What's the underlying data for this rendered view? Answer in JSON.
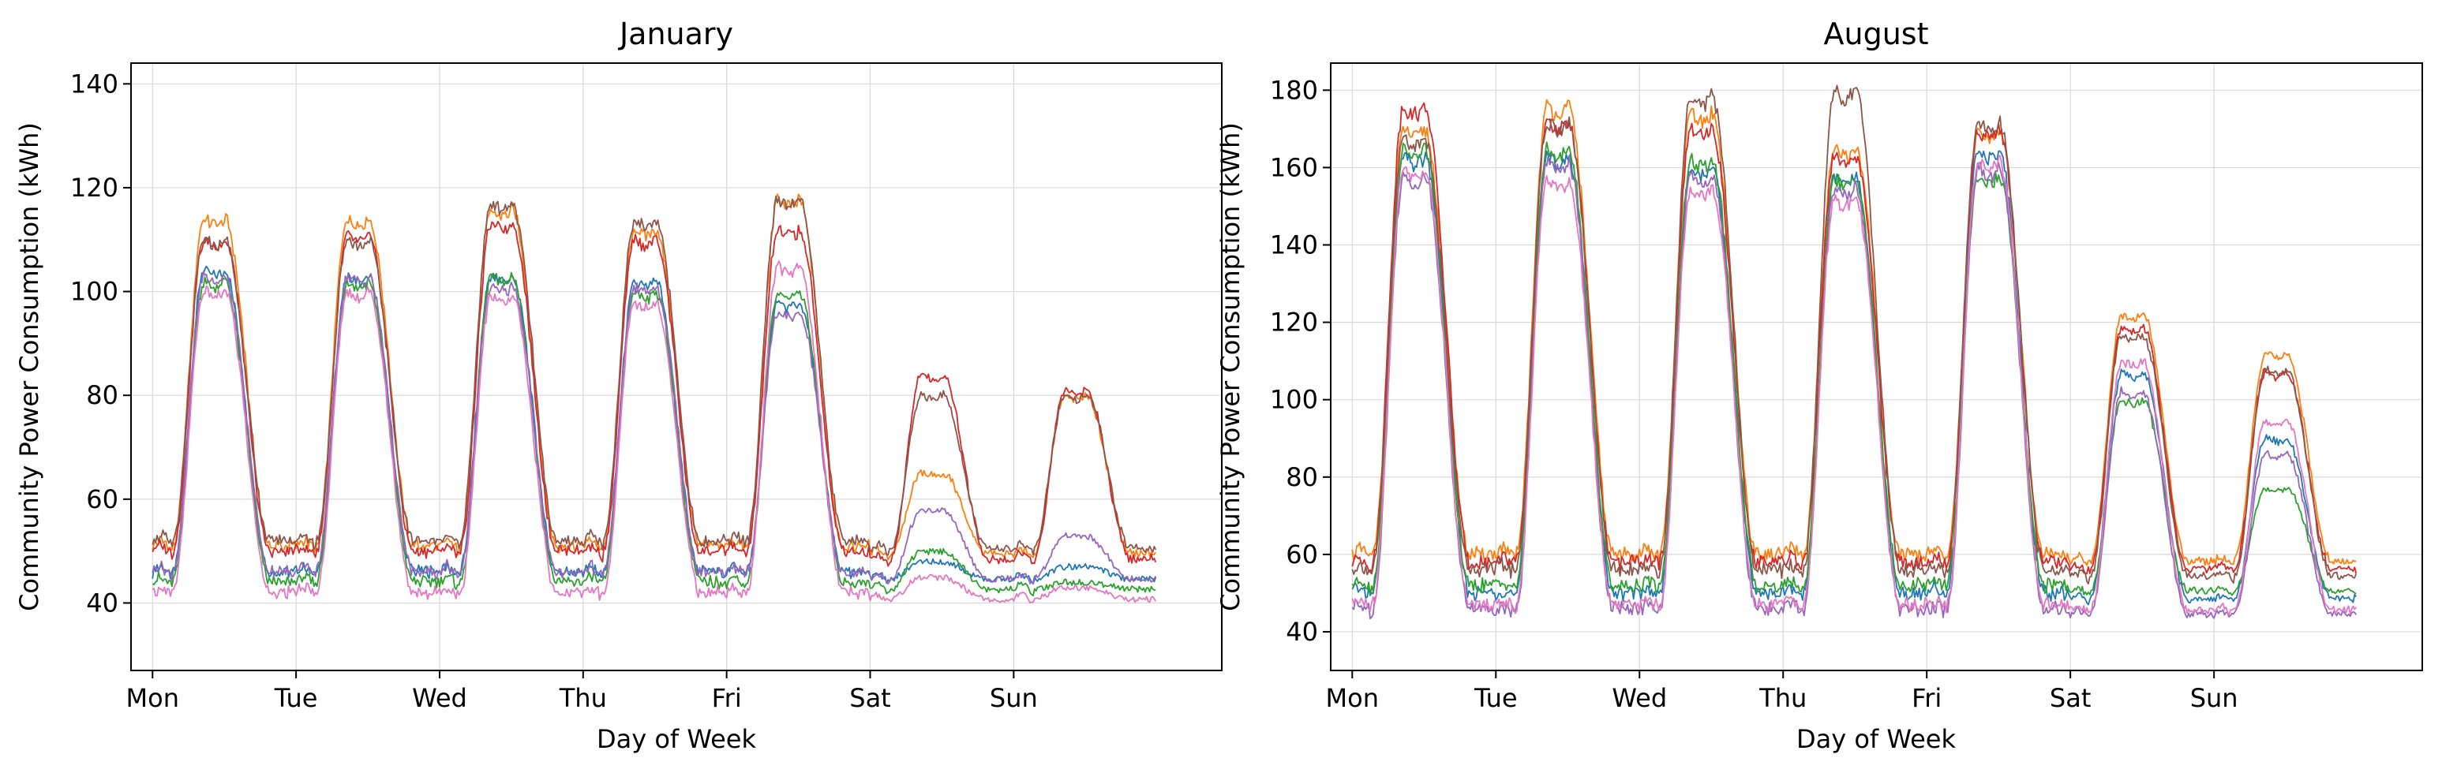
{
  "chart_data": [
    {
      "type": "line",
      "title": "January",
      "xlabel": "Day of Week",
      "ylabel": "Community Power Consumption (kWh)",
      "x_ticks": [
        "Mon",
        "Tue",
        "Wed",
        "Thu",
        "Fri",
        "Sat",
        "Sun"
      ],
      "xlim": [
        -0.15,
        7.45
      ],
      "ylim": [
        27,
        144
      ],
      "y_ticks": [
        40,
        60,
        80,
        100,
        120,
        140
      ],
      "grid": true,
      "legend": "none",
      "series_colors": [
        "#1f77b4",
        "#ff7f0e",
        "#2ca02c",
        "#d62728",
        "#9467bd",
        "#8c564b",
        "#e377c2"
      ],
      "series_day_profiles": [
        {
          "base": 46,
          "peak": [
            104,
            103,
            103,
            102,
            98,
            48,
            47
          ]
        },
        {
          "base": 51,
          "peak": [
            114,
            114,
            116,
            112,
            118,
            65,
            80
          ]
        },
        {
          "base": 44,
          "peak": [
            102,
            102,
            103,
            100,
            100,
            50,
            44
          ]
        },
        {
          "base": 50,
          "peak": [
            110,
            111,
            113,
            110,
            112,
            84,
            81
          ]
        },
        {
          "base": 46,
          "peak": [
            103,
            103,
            101,
            101,
            96,
            58,
            53
          ]
        },
        {
          "base": 52,
          "peak": [
            110,
            110,
            117,
            114,
            118,
            80,
            80
          ]
        },
        {
          "base": 42,
          "peak": [
            100,
            100,
            99,
            98,
            105,
            45,
            43
          ]
        }
      ]
    },
    {
      "type": "line",
      "title": "August",
      "xlabel": "Day of Week",
      "ylabel": "Community Power Consumption (kWh)",
      "x_ticks": [
        "Mon",
        "Tue",
        "Wed",
        "Thu",
        "Fri",
        "Sat",
        "Sun"
      ],
      "xlim": [
        -0.15,
        7.45
      ],
      "ylim": [
        30,
        187
      ],
      "y_ticks": [
        40,
        60,
        80,
        100,
        120,
        140,
        160,
        180
      ],
      "grid": true,
      "legend": "none",
      "series_colors": [
        "#1f77b4",
        "#ff7f0e",
        "#2ca02c",
        "#d62728",
        "#9467bd",
        "#8c564b",
        "#e377c2"
      ],
      "series_day_profiles": [
        {
          "base": 50,
          "peak": [
            163,
            163,
            160,
            158,
            165,
            107,
            90
          ]
        },
        {
          "base": 60,
          "peak": [
            170,
            176,
            174,
            165,
            170,
            122,
            112
          ]
        },
        {
          "base": 52,
          "peak": [
            165,
            165,
            162,
            157,
            158,
            100,
            77
          ]
        },
        {
          "base": 58,
          "peak": [
            176,
            172,
            170,
            163,
            170,
            119,
            107
          ]
        },
        {
          "base": 46,
          "peak": [
            158,
            162,
            158,
            155,
            160,
            102,
            86
          ]
        },
        {
          "base": 56,
          "peak": [
            168,
            172,
            179,
            180,
            172,
            117,
            108
          ]
        },
        {
          "base": 47,
          "peak": [
            160,
            157,
            155,
            152,
            162,
            110,
            95
          ]
        }
      ]
    }
  ]
}
